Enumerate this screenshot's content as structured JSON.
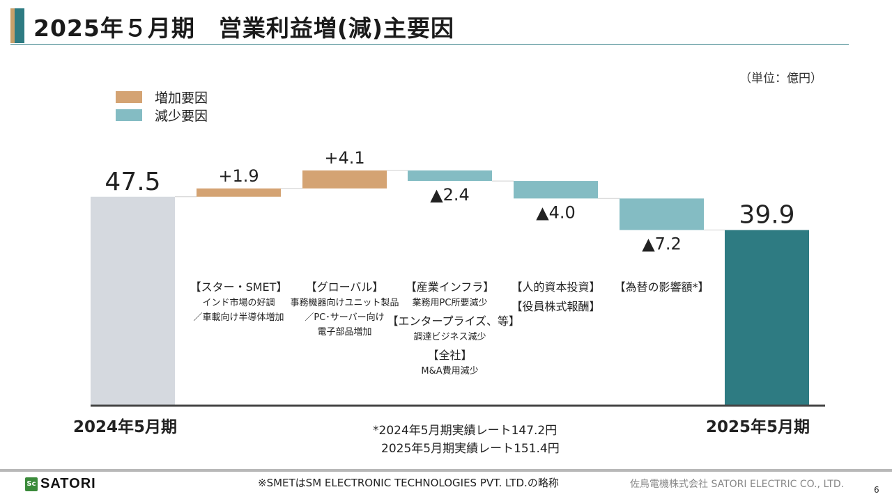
{
  "title": "2025年５月期　営業利益増(減)主要因",
  "unit": "（単位：億円）",
  "legend": [
    {
      "label": "増加要因",
      "color": "#d4a373"
    },
    {
      "label": "減少要因",
      "color": "#84bcc3"
    }
  ],
  "colors": {
    "start": "#d5d9df",
    "end": "#2e7b82",
    "increase": "#d4a373",
    "decrease": "#84bcc3"
  },
  "chart_data": {
    "type": "bar",
    "subtype": "waterfall",
    "categories": [
      "2024年5月期",
      "",
      "",
      "",
      "",
      "",
      "2025年5月期"
    ],
    "start": 47.5,
    "end": 39.9,
    "steps": [
      1.9,
      4.1,
      -2.4,
      -4.0,
      -7.2
    ],
    "value_labels": [
      "47.5",
      "+1.9",
      "+4.1",
      "▲2.4",
      "▲4.0",
      "▲7.2",
      "39.9"
    ]
  },
  "annotations": [
    {
      "lines": [
        {
          "t": "【スター・SMET】",
          "s": "h"
        },
        {
          "t": "インド市場の好調",
          "s": "s"
        },
        {
          "t": "／車載向け半導体増加",
          "s": "s"
        }
      ]
    },
    {
      "lines": [
        {
          "t": "【グローバル】",
          "s": "h"
        },
        {
          "t": "事務機器向けユニット製品",
          "s": "s"
        },
        {
          "t": "／PC･サーバー向け",
          "s": "s"
        },
        {
          "t": "電子部品増加",
          "s": "s"
        }
      ]
    },
    {
      "lines": [
        {
          "t": "【産業インフラ】",
          "s": "h"
        },
        {
          "t": "業務用PC所要減少",
          "s": "s"
        },
        {
          "t": "【エンタープライズ、等】",
          "s": "h"
        },
        {
          "t": "調達ビジネス減少",
          "s": "s"
        },
        {
          "t": "【全社】",
          "s": "h"
        },
        {
          "t": "M&A費用減少",
          "s": "s"
        }
      ]
    },
    {
      "lines": [
        {
          "t": "【人的資本投資】",
          "s": "h"
        },
        {
          "t": "【役員株式報酬】",
          "s": "h"
        }
      ]
    },
    {
      "lines": [
        {
          "t": "【為替の影響額*】",
          "s": "h"
        }
      ]
    }
  ],
  "notes": [
    "*2024年5月期実績レート147.2円",
    "2025年5月期実績レート151.4円"
  ],
  "footer": {
    "logo_text": "SATORI",
    "footnote": "※SMETはSM ELECTRONIC TECHNOLOGIES PVT. LTD.の略称",
    "company": "佐鳥電機株式会社  SATORI ELECTRIC CO., LTD.",
    "page": "6"
  }
}
